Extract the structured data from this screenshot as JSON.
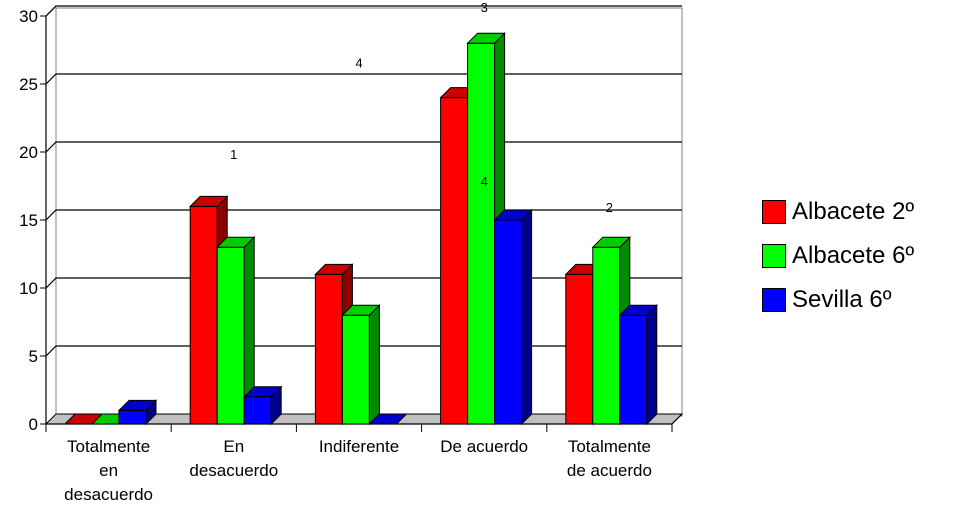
{
  "chart_data": {
    "type": "bar",
    "title": "",
    "xlabel": "",
    "ylabel": "",
    "ylim": [
      0,
      30
    ],
    "yticks": [
      0,
      5,
      10,
      15,
      20,
      25,
      30
    ],
    "grid": true,
    "legend_position": "right",
    "categories": [
      [
        "Totalmente",
        "en",
        "desacuerdo"
      ],
      [
        "En",
        "desacuerdo"
      ],
      [
        "Indiferente"
      ],
      [
        "De acuerdo"
      ],
      [
        "Totalmente",
        "de acuerdo"
      ]
    ],
    "series": [
      {
        "name": "Albacete 2º",
        "color": "#ff0000",
        "values": [
          0,
          16,
          11,
          24,
          11
        ]
      },
      {
        "name": "Albacete 6º",
        "color": "#00ff00",
        "values": [
          0,
          13,
          8,
          28,
          13
        ]
      },
      {
        "name": "Sevilla 6º",
        "color": "#0000ff",
        "values": [
          1,
          2,
          0,
          15,
          8
        ]
      }
    ],
    "annotations": [
      {
        "text": "1",
        "category_index": 1,
        "y": 19.5
      },
      {
        "text": "4",
        "category_index": 2,
        "y": 26.2
      },
      {
        "text": "3",
        "category_index": 3,
        "y": 30.3
      },
      {
        "text": "4",
        "category_index": 3,
        "y": 17.5
      },
      {
        "text": "2",
        "category_index": 4,
        "y": 15.6
      }
    ]
  }
}
